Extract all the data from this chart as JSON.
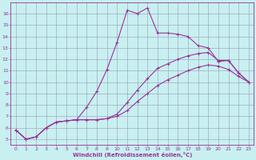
{
  "xlabel": "Windchill (Refroidissement éolien,°C)",
  "xlim": [
    -0.5,
    23.5
  ],
  "ylim": [
    4.5,
    17
  ],
  "xticks": [
    0,
    1,
    2,
    3,
    4,
    5,
    6,
    7,
    8,
    9,
    10,
    11,
    12,
    13,
    14,
    15,
    16,
    17,
    18,
    19,
    20,
    21,
    22,
    23
  ],
  "yticks": [
    5,
    6,
    7,
    8,
    9,
    10,
    11,
    12,
    13,
    14,
    15,
    16
  ],
  "bg_color": "#c8f0f0",
  "grid_color": "#9999bb",
  "line_color": "#993399",
  "curve1_x": [
    0,
    1,
    2,
    3,
    4,
    5,
    6,
    7,
    8,
    9,
    10,
    11,
    12,
    13,
    14,
    15,
    16,
    17,
    18,
    19,
    20,
    21,
    22,
    23
  ],
  "curve1_y": [
    5.8,
    5.0,
    5.2,
    6.0,
    6.5,
    6.6,
    6.7,
    7.8,
    9.2,
    11.1,
    13.5,
    16.3,
    16.0,
    16.5,
    14.3,
    14.3,
    14.2,
    14.0,
    13.2,
    13.0,
    11.8,
    11.9,
    10.8,
    10.0
  ],
  "curve2_x": [
    0,
    1,
    2,
    3,
    4,
    5,
    6,
    7,
    8,
    9,
    10,
    11,
    12,
    13,
    14,
    15,
    16,
    17,
    18,
    19,
    20,
    21,
    22,
    23
  ],
  "curve2_y": [
    5.8,
    5.0,
    5.2,
    6.0,
    6.5,
    6.6,
    6.7,
    6.7,
    6.7,
    6.8,
    7.2,
    8.2,
    9.3,
    10.3,
    11.2,
    11.6,
    12.0,
    12.3,
    12.5,
    12.6,
    11.9,
    11.9,
    10.8,
    10.0
  ],
  "curve3_x": [
    0,
    1,
    2,
    3,
    4,
    5,
    6,
    7,
    8,
    9,
    10,
    11,
    12,
    13,
    14,
    15,
    16,
    17,
    18,
    19,
    20,
    21,
    22,
    23
  ],
  "curve3_y": [
    5.8,
    5.0,
    5.2,
    6.0,
    6.5,
    6.6,
    6.7,
    6.7,
    6.7,
    6.8,
    7.0,
    7.5,
    8.3,
    9.0,
    9.7,
    10.2,
    10.6,
    11.0,
    11.3,
    11.5,
    11.4,
    11.1,
    10.5,
    10.0
  ]
}
